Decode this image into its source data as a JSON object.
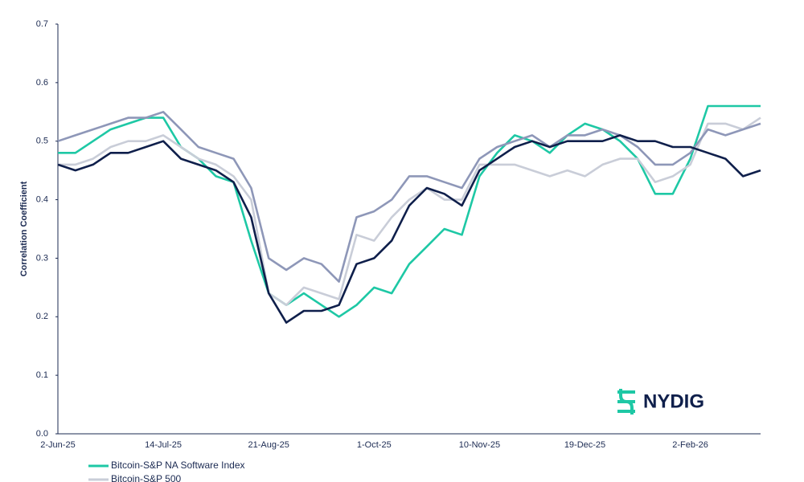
{
  "chart_data": {
    "type": "line",
    "y_label": "Correlation Coefficient",
    "logo": "NYDIG",
    "categories": [
      "2-Jun-25",
      null,
      null,
      null,
      null,
      null,
      "14-Jul-25",
      null,
      null,
      null,
      null,
      null,
      "21-Aug-25",
      null,
      null,
      null,
      null,
      null,
      "1-Oct-25",
      null,
      null,
      null,
      null,
      null,
      "10-Nov-25",
      null,
      null,
      null,
      null,
      null,
      "19-Dec-25",
      null,
      null,
      null,
      null,
      null,
      "2-Feb-26",
      null,
      null,
      null,
      null
    ],
    "ylim": [
      0,
      0.7
    ],
    "yticks": [
      {
        "value": 0,
        "label": "0.0"
      },
      0.1,
      0.2,
      0.3,
      0.4,
      0.5,
      0.6,
      0.7
    ],
    "series": [
      {
        "name": "Bitcoin-S&P NA Software Index",
        "color": "#1ec8a5",
        "values": [
          0.48,
          0.48,
          0.5,
          0.52,
          0.53,
          0.54,
          0.54,
          0.49,
          0.47,
          0.44,
          0.43,
          0.33,
          0.24,
          0.22,
          0.24,
          0.22,
          0.2,
          0.22,
          0.25,
          0.24,
          0.29,
          0.32,
          0.35,
          0.34,
          0.44,
          0.48,
          0.51,
          0.5,
          0.48,
          0.51,
          0.53,
          0.52,
          0.5,
          0.47,
          0.41,
          0.41,
          0.47,
          0.56,
          0.56,
          0.56,
          0.56
        ]
      },
      {
        "name": "Bitcoin-S&P 500",
        "color": "#c9cdd8",
        "values": [
          0.46,
          0.46,
          0.47,
          0.49,
          0.5,
          0.5,
          0.51,
          0.49,
          0.47,
          0.46,
          0.44,
          0.4,
          0.24,
          0.22,
          0.25,
          0.24,
          0.23,
          0.34,
          0.33,
          0.37,
          0.4,
          0.42,
          0.4,
          0.4,
          0.46,
          0.46,
          0.46,
          0.45,
          0.44,
          0.45,
          0.44,
          0.46,
          0.47,
          0.47,
          0.43,
          0.44,
          0.46,
          0.53,
          0.53,
          0.52,
          0.54
        ]
      },
      {
        "color": "#8e97b8",
        "values": [
          0.5,
          0.51,
          0.52,
          0.53,
          0.54,
          0.54,
          0.55,
          0.52,
          0.49,
          0.48,
          0.47,
          0.42,
          0.3,
          0.28,
          0.3,
          0.29,
          0.26,
          0.37,
          0.38,
          0.4,
          0.44,
          0.44,
          0.43,
          0.42,
          0.47,
          0.49,
          0.5,
          0.51,
          0.49,
          0.51,
          0.51,
          0.52,
          0.51,
          0.49,
          0.46,
          0.46,
          0.48,
          0.52,
          0.51,
          0.52,
          0.53
        ]
      },
      {
        "color": "#0f1f4b",
        "values": [
          0.46,
          0.45,
          0.46,
          0.48,
          0.48,
          0.49,
          0.5,
          0.47,
          0.46,
          0.45,
          0.43,
          0.37,
          0.24,
          0.19,
          0.21,
          0.21,
          0.22,
          0.29,
          0.3,
          0.33,
          0.39,
          0.42,
          0.41,
          0.39,
          0.45,
          0.47,
          0.49,
          0.5,
          0.49,
          0.5,
          0.5,
          0.5,
          0.51,
          0.5,
          0.5,
          0.49,
          0.49,
          0.48,
          0.47,
          0.44,
          0.45
        ]
      }
    ]
  }
}
